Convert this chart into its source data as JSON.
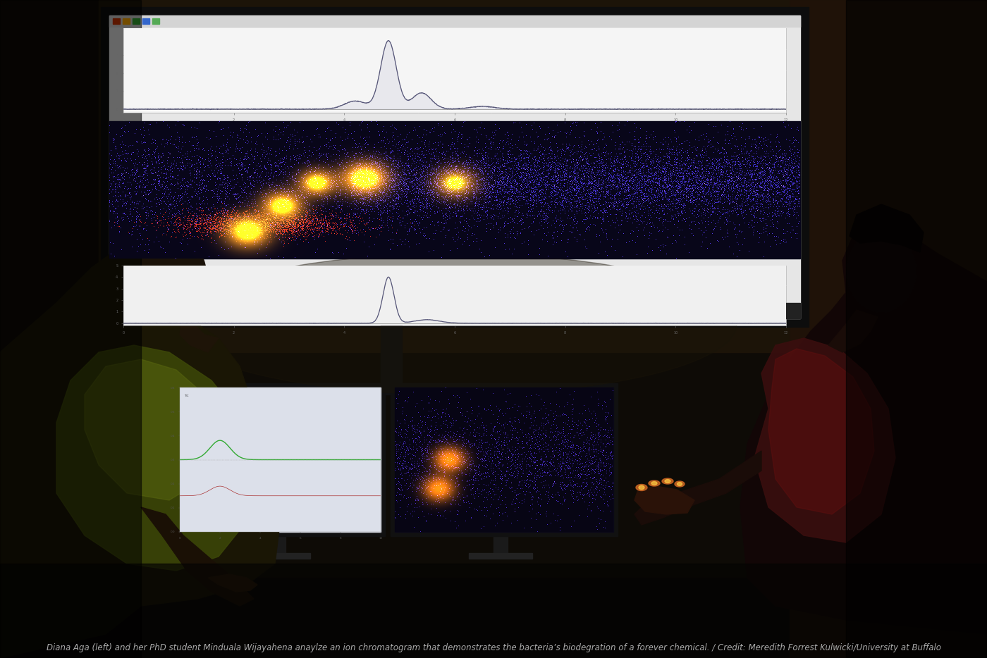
{
  "figure_width": 14.0,
  "figure_height": 9.34,
  "dpi": 100,
  "bg_dark": "#0d0a05",
  "room_mid": "#1a1208",
  "room_right": "#2a1a0a",
  "screen_bg": "#e8e8e8",
  "screen_bezel": "#111111",
  "toolbar_color": "#cccccc",
  "chrom_line": "#666688",
  "scatter_dark_bg": "#0a0820",
  "taskbar_color": "#333333",
  "monitor_bezel": "#1a1a1a",
  "left_monitor_bg": "#d8dce8",
  "right_monitor_bg": "#0a0818",
  "person_left_body": "#1e1e05",
  "person_left_shirt": "#3d4a08",
  "person_right_body": "#150808",
  "person_right_shirt": "#3a1010",
  "caption": "Diana Aga (left) and her PhD student Minduala Wijayahena anaylze an ion chromatogram that demonstrates the bacteria’s biodegration of a forever chemical. / Credit: Meredith Forrest Kulwicki/University at Buffalo",
  "caption_color": "#aaaaaa",
  "caption_fontsize": 8.5
}
